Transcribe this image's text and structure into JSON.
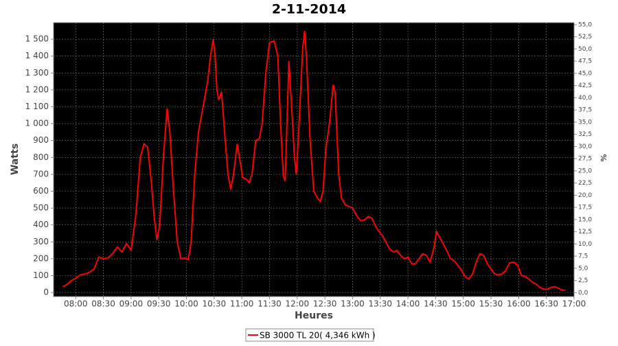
{
  "chart_data": {
    "type": "line",
    "title": "2-11-2014",
    "y_label": "Watts",
    "y2_label": "%",
    "x_label": "Heures",
    "xlim": [
      "07:36",
      "17:00"
    ],
    "xticks": [
      "08:00",
      "08:30",
      "09:00",
      "09:30",
      "10:00",
      "10:30",
      "11:00",
      "11:30",
      "12:00",
      "12:30",
      "13:00",
      "13:30",
      "14:00",
      "14:30",
      "15:00",
      "15:30",
      "16:00",
      "16:30",
      "17:00"
    ],
    "ylim": [
      -24,
      1598
    ],
    "yticks": [
      0,
      100,
      200,
      300,
      400,
      500,
      600,
      700,
      800,
      900,
      {
        "value": 1000,
        "label": "1 000"
      },
      {
        "value": 1100,
        "label": "1 100"
      },
      {
        "value": 1200,
        "label": "1 200"
      },
      {
        "value": 1300,
        "label": "1 300"
      },
      {
        "value": 1400,
        "label": "1 400"
      },
      {
        "value": 1500,
        "label": "1 500"
      }
    ],
    "y2lim": [
      -0.8,
      55.4
    ],
    "y2ticks": [
      {
        "value": 0,
        "label": "0,0"
      },
      {
        "value": 2.5,
        "label": "2,5"
      },
      {
        "value": 5,
        "label": "5,0"
      },
      {
        "value": 7.5,
        "label": "7,5"
      },
      {
        "value": 10,
        "label": "10,0"
      },
      {
        "value": 12.5,
        "label": "12,5"
      },
      {
        "value": 15,
        "label": "15,0"
      },
      {
        "value": 17.5,
        "label": "17,5"
      },
      {
        "value": 20,
        "label": "20,0"
      },
      {
        "value": 22.5,
        "label": "22,5"
      },
      {
        "value": 25,
        "label": "25,0"
      },
      {
        "value": 27.5,
        "label": "27,5"
      },
      {
        "value": 30,
        "label": "30,0"
      },
      {
        "value": 32.5,
        "label": "32,5"
      },
      {
        "value": 35,
        "label": "35,0"
      },
      {
        "value": 37.5,
        "label": "37,5"
      },
      {
        "value": 40,
        "label": "40,0"
      },
      {
        "value": 42.5,
        "label": "42,5"
      },
      {
        "value": 45,
        "label": "45,0"
      },
      {
        "value": 47.5,
        "label": "47,5"
      },
      {
        "value": 50,
        "label": "50,0"
      },
      {
        "value": 52.5,
        "label": "52,5"
      },
      {
        "value": 55,
        "label": "55,0"
      }
    ],
    "grid": true,
    "background": "#000000",
    "x": [
      "07:46",
      "07:50",
      "07:55",
      "08:00",
      "08:05",
      "08:10",
      "08:15",
      "08:20",
      "08:25",
      "08:30",
      "08:35",
      "08:40",
      "08:45",
      "08:50",
      "08:55",
      "09:00",
      "09:05",
      "09:10",
      "09:14",
      "09:18",
      "09:22",
      "09:25",
      "09:28",
      "09:31",
      "09:35",
      "09:39",
      "09:42",
      "09:46",
      "09:50",
      "09:54",
      "09:58",
      "10:02",
      "10:05",
      "10:09",
      "10:13",
      "10:18",
      "10:23",
      "10:26",
      "10:29",
      "10:31",
      "10:33",
      "10:35",
      "10:38",
      "10:42",
      "10:45",
      "10:48",
      "10:51",
      "10:55",
      "10:58",
      "11:01",
      "11:05",
      "11:08",
      "11:11",
      "11:15",
      "11:19",
      "11:22",
      "11:26",
      "11:30",
      "11:35",
      "11:39",
      "11:42",
      "11:45",
      "11:47",
      "11:51",
      "11:54",
      "11:57",
      "11:59",
      "12:02",
      "12:06",
      "12:08",
      "12:10",
      "12:14",
      "12:18",
      "12:22",
      "12:25",
      "12:28",
      "12:31",
      "12:35",
      "12:39",
      "12:41",
      "12:45",
      "12:48",
      "12:52",
      "12:56",
      "13:00",
      "13:05",
      "13:09",
      "13:13",
      "13:17",
      "13:21",
      "13:26",
      "13:32",
      "13:36",
      "13:40",
      "13:44",
      "13:48",
      "13:52",
      "13:56",
      "14:00",
      "14:04",
      "14:08",
      "14:12",
      "14:16",
      "14:20",
      "14:24",
      "14:28",
      "14:31",
      "14:34",
      "14:38",
      "14:42",
      "14:46",
      "14:50",
      "14:54",
      "14:58",
      "15:02",
      "15:06",
      "15:10",
      "15:14",
      "15:18",
      "15:22",
      "15:26",
      "15:30",
      "15:34",
      "15:38",
      "15:42",
      "15:46",
      "15:50",
      "15:55",
      "15:59",
      "16:03",
      "16:07",
      "16:11",
      "16:15",
      "16:19",
      "16:23",
      "16:27",
      "16:31",
      "16:35",
      "16:39",
      "16:43",
      "16:47",
      "16:50"
    ],
    "series": [
      {
        "name": "SB 3000 TL 20( 4,346 kWh  )",
        "color": "#ff0000",
        "values": [
          35,
          45,
          70,
          85,
          105,
          110,
          120,
          140,
          210,
          200,
          205,
          230,
          270,
          240,
          290,
          250,
          450,
          800,
          880,
          860,
          650,
          450,
          310,
          400,
          800,
          1090,
          950,
          600,
          300,
          200,
          205,
          195,
          300,
          700,
          950,
          1100,
          1250,
          1400,
          1500,
          1400,
          1200,
          1140,
          1190,
          900,
          700,
          610,
          700,
          880,
          780,
          680,
          670,
          650,
          700,
          900,
          910,
          1000,
          1300,
          1480,
          1490,
          1400,
          1000,
          690,
          660,
          1370,
          1100,
          800,
          700,
          1000,
          1450,
          1550,
          1400,
          900,
          600,
          560,
          540,
          600,
          850,
          1000,
          1230,
          1190,
          700,
          560,
          520,
          510,
          500,
          450,
          425,
          430,
          450,
          440,
          380,
          340,
          300,
          260,
          240,
          250,
          220,
          200,
          210,
          170,
          170,
          200,
          230,
          220,
          180,
          260,
          360,
          330,
          290,
          250,
          200,
          190,
          160,
          130,
          95,
          80,
          110,
          180,
          230,
          220,
          170,
          140,
          110,
          105,
          110,
          130,
          175,
          180,
          160,
          100,
          95,
          80,
          60,
          50,
          30,
          20,
          20,
          30,
          35,
          25,
          15,
          12
        ]
      }
    ]
  }
}
